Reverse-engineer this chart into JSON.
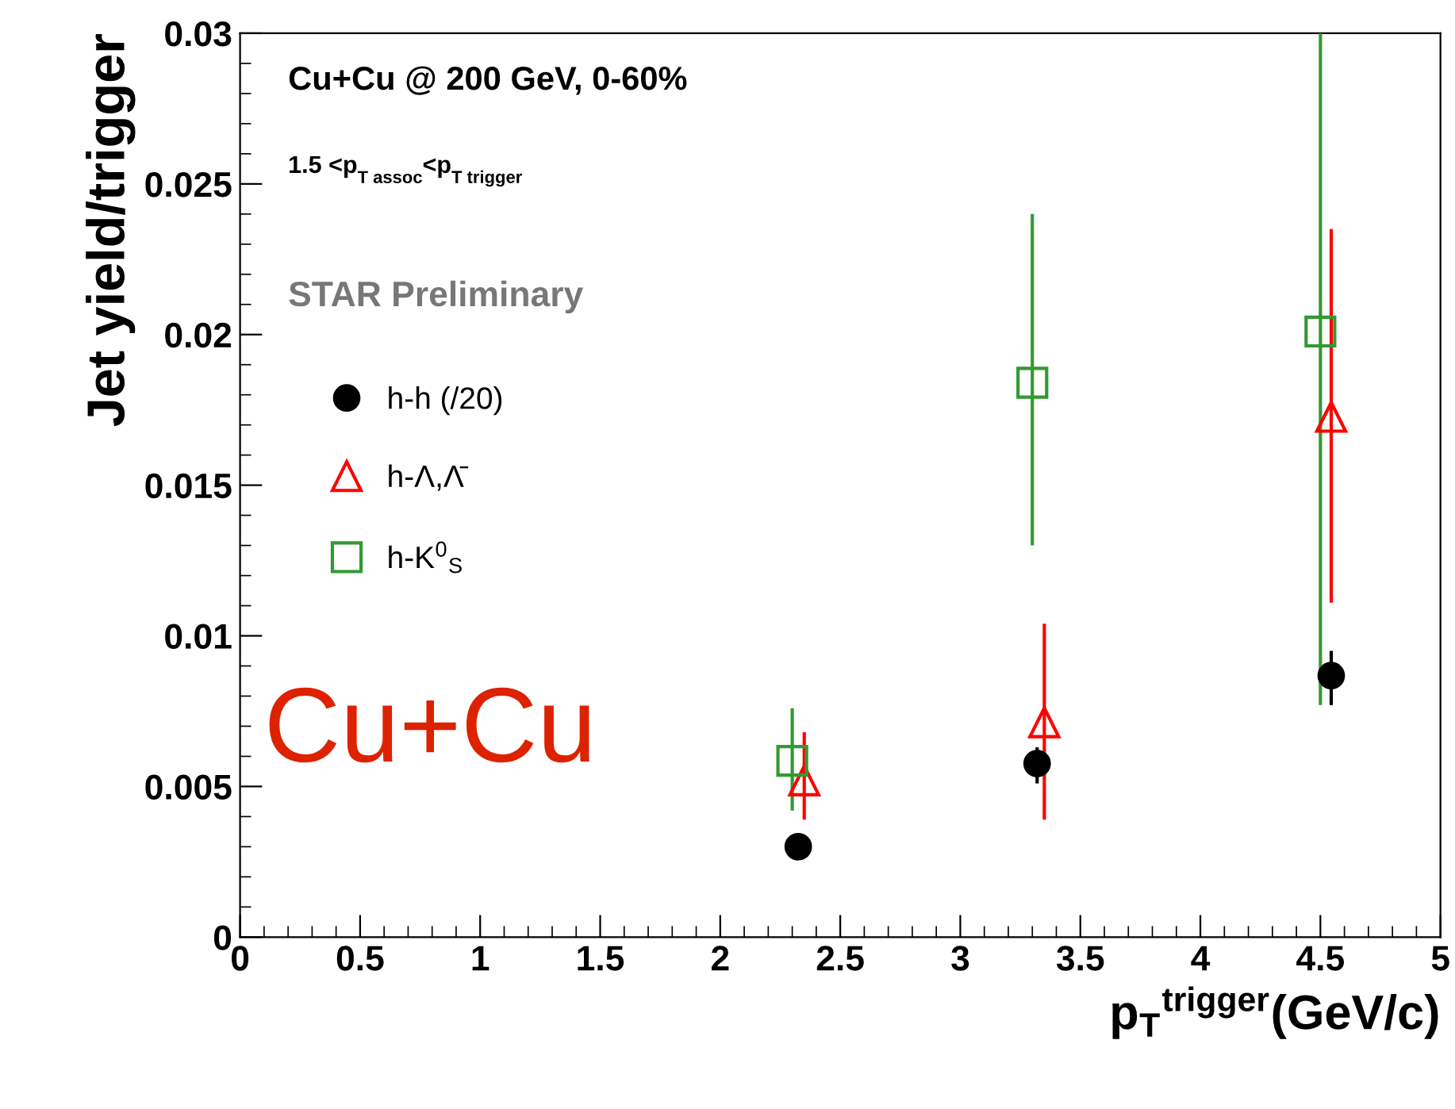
{
  "chart_data": {
    "type": "scatter",
    "xlabel": "p$_{T}$$^{trigger}$(GeV/c)",
    "ylabel": "Jet yield/trigger",
    "xlim": [
      0,
      5
    ],
    "xticks": [
      0,
      0.5,
      1,
      1.5,
      2,
      2.5,
      3,
      3.5,
      4,
      4.5,
      5
    ],
    "ylim": [
      0,
      0.03
    ],
    "yticks": [
      0,
      0.005,
      0.01,
      0.015,
      0.02,
      0.025,
      0.03
    ],
    "grid": false,
    "legend": "top left",
    "annotations": [
      "Cu+Cu @ 200 GeV, 0-60%",
      "1.5 <p$_{T assoc}$<p$_{T trigger}$",
      "STAR Preliminary",
      "Cu+Cu"
    ],
    "series": [
      {
        "name": "h-h (/20)",
        "color": "#000000",
        "marker": "circle",
        "x": [
          2.325,
          3.32,
          4.545
        ],
        "values": [
          0.003,
          0.00576,
          0.00868
        ],
        "errors": [
          null,
          [
            0.0051,
            0.0063
          ],
          [
            0.0077,
            0.0095
          ]
        ]
      },
      {
        "name": "h-Λ,Λ̄",
        "color": "#ff0000",
        "marker": "triangle",
        "x": [
          2.35,
          3.35,
          4.545
        ],
        "values": [
          0.0052,
          0.00713,
          0.01727
        ],
        "errors": [
          [
            0.0039,
            0.0068
          ],
          [
            0.0039,
            0.0104
          ],
          [
            0.0111,
            0.0235
          ]
        ]
      },
      {
        "name": "h-K$^{0}$$_{S}$",
        "color": "#339933",
        "marker": "square",
        "x": [
          2.3,
          3.3,
          4.5
        ],
        "values": [
          0.00585,
          0.0184,
          0.0201
        ],
        "errors": [
          [
            0.0042,
            0.0076
          ],
          [
            0.013,
            0.024
          ],
          [
            0.0077,
            0.03
          ]
        ]
      }
    ]
  }
}
